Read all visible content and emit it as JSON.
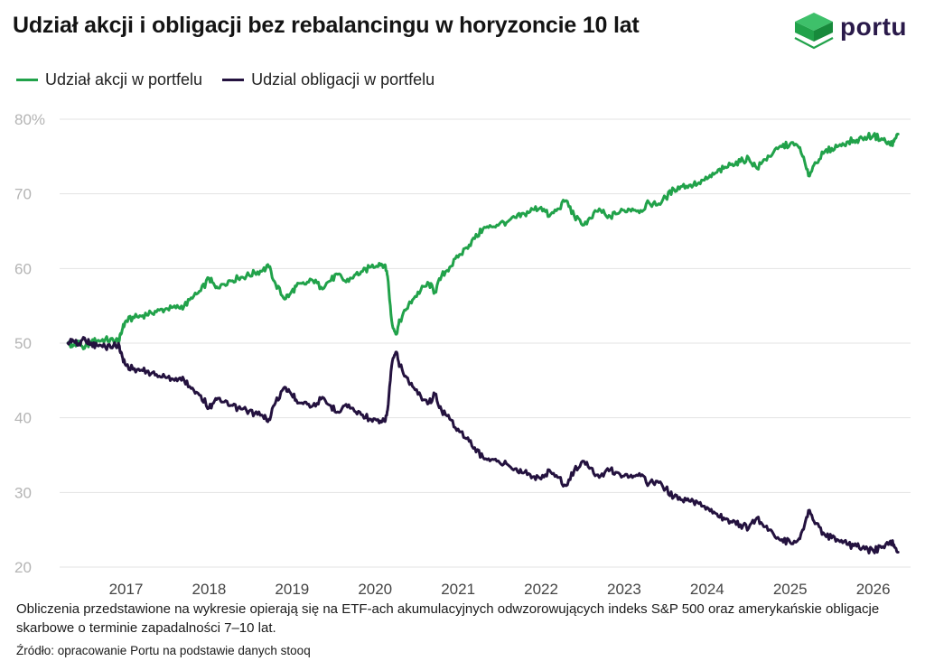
{
  "title": "Udział akcji i obligacji bez rebalancingu w horyzoncie 10 lat",
  "brand": {
    "name": "portu",
    "logo_icon": "cube-logo-icon",
    "green": "#21a24a",
    "purple": "#2a1a4a"
  },
  "note": "Obliczenia przedstawione na wykresie opierają się na ETF-ach akumulacyjnych odwzorowujących indeks S&P 500 oraz amerykańskie obligacje skarbowe o terminie zapadalności 7–10 lat.",
  "source": "Źródło: opracowanie Portu na podstawie danych stooq",
  "chart_data": {
    "type": "line",
    "title": "Udział akcji i obligacji bez rebalancingu w horyzoncie 10 lat",
    "xlabel": "",
    "ylabel": "",
    "xlim": [
      2016.2,
      2026.45
    ],
    "ylim": [
      20,
      80
    ],
    "y_ticks": [
      20,
      30,
      40,
      50,
      60,
      70,
      80
    ],
    "y_tick_labels": [
      "20",
      "30",
      "40",
      "50",
      "60",
      "70",
      "80%"
    ],
    "x_ticks": [
      2017,
      2018,
      2019,
      2020,
      2021,
      2022,
      2023,
      2024,
      2025,
      2026
    ],
    "x_tick_labels": [
      "2017",
      "2018",
      "2019",
      "2020",
      "2021",
      "2022",
      "2023",
      "2024",
      "2025",
      "2026"
    ],
    "grid": "horizontal",
    "legend_position": "top-left",
    "series": [
      {
        "name": "Udział akcji w portfelu",
        "color": "#21a24a",
        "points": [
          [
            2016.3,
            50.0
          ],
          [
            2016.35,
            49.5
          ],
          [
            2016.42,
            50.3
          ],
          [
            2016.5,
            49.3
          ],
          [
            2016.57,
            50.2
          ],
          [
            2016.65,
            50.3
          ],
          [
            2016.75,
            50.5
          ],
          [
            2016.85,
            50.3
          ],
          [
            2016.92,
            50.4
          ],
          [
            2016.96,
            52.0
          ],
          [
            2017.0,
            53.0
          ],
          [
            2017.1,
            53.4
          ],
          [
            2017.2,
            53.7
          ],
          [
            2017.3,
            54.1
          ],
          [
            2017.4,
            54.4
          ],
          [
            2017.5,
            54.6
          ],
          [
            2017.6,
            54.7
          ],
          [
            2017.7,
            55.0
          ],
          [
            2017.8,
            56.0
          ],
          [
            2017.9,
            57.0
          ],
          [
            2018.0,
            58.7
          ],
          [
            2018.08,
            57.4
          ],
          [
            2018.15,
            57.9
          ],
          [
            2018.25,
            58.4
          ],
          [
            2018.35,
            58.7
          ],
          [
            2018.45,
            59.0
          ],
          [
            2018.55,
            59.4
          ],
          [
            2018.65,
            59.8
          ],
          [
            2018.72,
            60.2
          ],
          [
            2018.8,
            58.0
          ],
          [
            2018.9,
            56.0
          ],
          [
            2018.97,
            56.5
          ],
          [
            2019.05,
            57.6
          ],
          [
            2019.15,
            57.9
          ],
          [
            2019.25,
            58.4
          ],
          [
            2019.35,
            57.5
          ],
          [
            2019.45,
            58.3
          ],
          [
            2019.55,
            59.2
          ],
          [
            2019.65,
            58.2
          ],
          [
            2019.75,
            59.1
          ],
          [
            2019.85,
            59.6
          ],
          [
            2019.95,
            60.2
          ],
          [
            2020.05,
            60.7
          ],
          [
            2020.12,
            60.5
          ],
          [
            2020.15,
            59.0
          ],
          [
            2020.2,
            53.0
          ],
          [
            2020.25,
            51.2
          ],
          [
            2020.3,
            53.0
          ],
          [
            2020.38,
            54.6
          ],
          [
            2020.45,
            55.8
          ],
          [
            2020.55,
            57.1
          ],
          [
            2020.65,
            58.0
          ],
          [
            2020.72,
            56.8
          ],
          [
            2020.8,
            59.0
          ],
          [
            2020.9,
            60.2
          ],
          [
            2021.0,
            61.5
          ],
          [
            2021.1,
            62.8
          ],
          [
            2021.2,
            64.0
          ],
          [
            2021.3,
            65.3
          ],
          [
            2021.4,
            65.6
          ],
          [
            2021.5,
            66.0
          ],
          [
            2021.6,
            66.3
          ],
          [
            2021.7,
            66.8
          ],
          [
            2021.8,
            67.3
          ],
          [
            2021.9,
            67.9
          ],
          [
            2022.0,
            68.2
          ],
          [
            2022.1,
            67.0
          ],
          [
            2022.2,
            68.0
          ],
          [
            2022.3,
            69.1
          ],
          [
            2022.4,
            67.0
          ],
          [
            2022.5,
            65.8
          ],
          [
            2022.6,
            66.7
          ],
          [
            2022.7,
            68.0
          ],
          [
            2022.8,
            66.8
          ],
          [
            2022.9,
            67.3
          ],
          [
            2023.0,
            67.8
          ],
          [
            2023.1,
            68.0
          ],
          [
            2023.2,
            67.8
          ],
          [
            2023.3,
            68.8
          ],
          [
            2023.4,
            68.5
          ],
          [
            2023.5,
            69.5
          ],
          [
            2023.6,
            70.6
          ],
          [
            2023.7,
            71.0
          ],
          [
            2023.8,
            71.2
          ],
          [
            2023.9,
            71.5
          ],
          [
            2024.0,
            72.0
          ],
          [
            2024.1,
            72.8
          ],
          [
            2024.2,
            73.4
          ],
          [
            2024.3,
            74.0
          ],
          [
            2024.4,
            74.3
          ],
          [
            2024.5,
            74.8
          ],
          [
            2024.6,
            73.4
          ],
          [
            2024.7,
            74.6
          ],
          [
            2024.8,
            75.6
          ],
          [
            2024.9,
            76.3
          ],
          [
            2025.0,
            76.7
          ],
          [
            2025.1,
            76.3
          ],
          [
            2025.15,
            75.0
          ],
          [
            2025.22,
            72.4
          ],
          [
            2025.3,
            74.2
          ],
          [
            2025.4,
            75.4
          ],
          [
            2025.5,
            76.1
          ],
          [
            2025.6,
            76.6
          ],
          [
            2025.7,
            77.0
          ],
          [
            2025.8,
            77.2
          ],
          [
            2025.9,
            77.6
          ],
          [
            2026.0,
            77.8
          ],
          [
            2026.1,
            77.4
          ],
          [
            2026.2,
            76.6
          ],
          [
            2026.25,
            77.0
          ],
          [
            2026.3,
            78.0
          ]
        ]
      },
      {
        "name": "Udzial obligacji w portfelu",
        "color": "#24123f",
        "points": [
          [
            2016.3,
            50.0
          ],
          [
            2016.35,
            50.5
          ],
          [
            2016.42,
            49.7
          ],
          [
            2016.5,
            50.7
          ],
          [
            2016.57,
            49.8
          ],
          [
            2016.65,
            49.7
          ],
          [
            2016.75,
            49.5
          ],
          [
            2016.85,
            49.7
          ],
          [
            2016.92,
            49.6
          ],
          [
            2016.96,
            48.0
          ],
          [
            2017.0,
            47.0
          ],
          [
            2017.1,
            46.6
          ],
          [
            2017.2,
            46.3
          ],
          [
            2017.3,
            45.9
          ],
          [
            2017.4,
            45.6
          ],
          [
            2017.5,
            45.4
          ],
          [
            2017.6,
            45.3
          ],
          [
            2017.7,
            45.0
          ],
          [
            2017.8,
            44.0
          ],
          [
            2017.9,
            43.0
          ],
          [
            2018.0,
            41.3
          ],
          [
            2018.08,
            42.6
          ],
          [
            2018.15,
            42.1
          ],
          [
            2018.25,
            41.6
          ],
          [
            2018.35,
            41.3
          ],
          [
            2018.45,
            41.0
          ],
          [
            2018.55,
            40.6
          ],
          [
            2018.65,
            40.2
          ],
          [
            2018.72,
            39.8
          ],
          [
            2018.8,
            42.0
          ],
          [
            2018.9,
            44.0
          ],
          [
            2018.97,
            43.5
          ],
          [
            2019.05,
            42.4
          ],
          [
            2019.15,
            42.1
          ],
          [
            2019.25,
            41.6
          ],
          [
            2019.35,
            42.5
          ],
          [
            2019.45,
            41.7
          ],
          [
            2019.55,
            40.8
          ],
          [
            2019.65,
            41.8
          ],
          [
            2019.75,
            40.9
          ],
          [
            2019.85,
            40.4
          ],
          [
            2019.95,
            39.8
          ],
          [
            2020.05,
            39.3
          ],
          [
            2020.12,
            39.5
          ],
          [
            2020.15,
            41.0
          ],
          [
            2020.2,
            47.0
          ],
          [
            2020.25,
            48.8
          ],
          [
            2020.3,
            47.0
          ],
          [
            2020.38,
            45.4
          ],
          [
            2020.45,
            44.2
          ],
          [
            2020.55,
            42.9
          ],
          [
            2020.65,
            42.0
          ],
          [
            2020.72,
            43.2
          ],
          [
            2020.8,
            41.0
          ],
          [
            2020.9,
            39.8
          ],
          [
            2021.0,
            38.5
          ],
          [
            2021.1,
            37.2
          ],
          [
            2021.2,
            36.0
          ],
          [
            2021.3,
            34.7
          ],
          [
            2021.4,
            34.4
          ],
          [
            2021.5,
            34.0
          ],
          [
            2021.6,
            33.7
          ],
          [
            2021.7,
            33.2
          ],
          [
            2021.8,
            32.7
          ],
          [
            2021.9,
            32.1
          ],
          [
            2022.0,
            31.8
          ],
          [
            2022.1,
            33.0
          ],
          [
            2022.2,
            32.0
          ],
          [
            2022.3,
            30.9
          ],
          [
            2022.4,
            33.0
          ],
          [
            2022.5,
            34.2
          ],
          [
            2022.6,
            33.3
          ],
          [
            2022.7,
            32.0
          ],
          [
            2022.8,
            33.2
          ],
          [
            2022.9,
            32.7
          ],
          [
            2023.0,
            32.2
          ],
          [
            2023.1,
            32.0
          ],
          [
            2023.2,
            32.2
          ],
          [
            2023.3,
            31.2
          ],
          [
            2023.4,
            31.5
          ],
          [
            2023.5,
            30.5
          ],
          [
            2023.6,
            29.4
          ],
          [
            2023.7,
            29.0
          ],
          [
            2023.8,
            28.8
          ],
          [
            2023.9,
            28.5
          ],
          [
            2024.0,
            28.0
          ],
          [
            2024.1,
            27.2
          ],
          [
            2024.2,
            26.6
          ],
          [
            2024.3,
            26.0
          ],
          [
            2024.4,
            25.7
          ],
          [
            2024.5,
            25.2
          ],
          [
            2024.6,
            26.6
          ],
          [
            2024.7,
            25.4
          ],
          [
            2024.8,
            24.4
          ],
          [
            2024.9,
            23.7
          ],
          [
            2025.0,
            23.3
          ],
          [
            2025.1,
            23.7
          ],
          [
            2025.15,
            25.0
          ],
          [
            2025.22,
            27.6
          ],
          [
            2025.3,
            25.8
          ],
          [
            2025.4,
            24.6
          ],
          [
            2025.5,
            23.9
          ],
          [
            2025.6,
            23.4
          ],
          [
            2025.7,
            23.0
          ],
          [
            2025.8,
            22.8
          ],
          [
            2025.9,
            22.4
          ],
          [
            2026.0,
            22.2
          ],
          [
            2026.1,
            22.6
          ],
          [
            2026.2,
            23.4
          ],
          [
            2026.25,
            23.0
          ],
          [
            2026.3,
            22.0
          ]
        ]
      }
    ]
  }
}
